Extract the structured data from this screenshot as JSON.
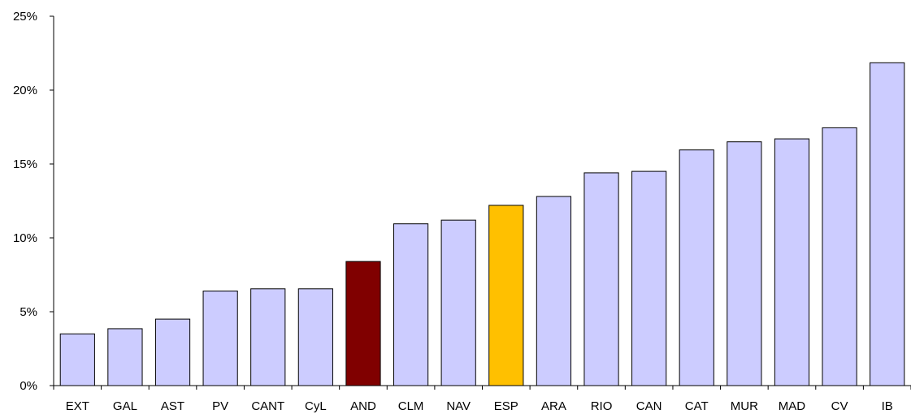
{
  "chart_data": {
    "type": "bar",
    "title": "",
    "xlabel": "",
    "ylabel": "",
    "categories": [
      "EXT",
      "GAL",
      "AST",
      "PV",
      "CANT",
      "CyL",
      "AND",
      "CLM",
      "NAV",
      "ESP",
      "ARA",
      "RIO",
      "CAN",
      "CAT",
      "MUR",
      "MAD",
      "CV",
      "IB"
    ],
    "values": [
      3.5,
      3.85,
      4.5,
      6.4,
      6.55,
      6.55,
      8.4,
      10.95,
      11.2,
      12.2,
      12.8,
      14.4,
      14.5,
      15.95,
      16.5,
      16.7,
      17.45,
      21.85
    ],
    "ylim": [
      0,
      25
    ],
    "yticks": [
      0,
      5,
      10,
      15,
      20,
      25
    ],
    "ytick_labels": [
      "0%",
      "5%",
      "10%",
      "15%",
      "20%",
      "25%"
    ],
    "grid": false,
    "legend": "none",
    "colors": {
      "default": "#CCCCFF",
      "AND": "#800000",
      "ESP": "#FFC000",
      "stroke": "#000000"
    }
  }
}
